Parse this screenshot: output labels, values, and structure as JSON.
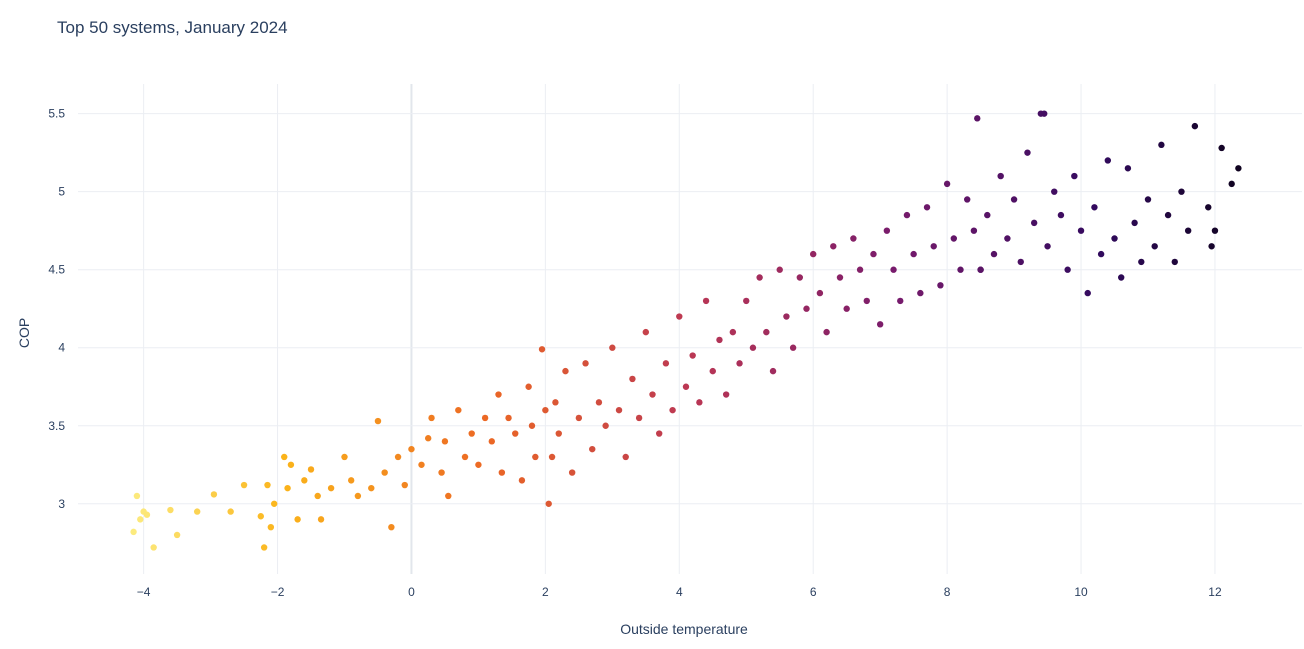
{
  "chart_data": {
    "type": "scatter",
    "title": "Top 50 systems, January 2024",
    "xlabel": "Outside temperature",
    "ylabel": "COP",
    "xlim": [
      -4.98,
      13.3
    ],
    "ylim": [
      2.55,
      5.69
    ],
    "xticks": [
      -4,
      -2,
      0,
      2,
      4,
      6,
      8,
      10,
      12
    ],
    "yticks": [
      3,
      3.5,
      4,
      4.5,
      5,
      5.5
    ],
    "xtick_labels": [
      "−4",
      "−2",
      "0",
      "2",
      "4",
      "6",
      "8",
      "10",
      "12"
    ],
    "ytick_labels": [
      "3",
      "3.5",
      "4",
      "4.5",
      "5",
      "5.5"
    ],
    "grid": true,
    "colorscale": [
      "#000004",
      "#320a5e",
      "#781b6c",
      "#bb3754",
      "#ec6824",
      "#fbb41a",
      "#fcffa4"
    ],
    "color_note_from_image": "point colour shifts from yellow (coldest) to black (warmest)",
    "series": [
      {
        "points": [
          [
            -4.15,
            2.82
          ],
          [
            -4.1,
            3.05
          ],
          [
            -4.05,
            2.9
          ],
          [
            -4.0,
            2.95
          ],
          [
            -3.95,
            2.93
          ],
          [
            -3.85,
            2.72
          ],
          [
            -3.6,
            2.96
          ],
          [
            -3.5,
            2.8
          ],
          [
            -3.2,
            2.95
          ],
          [
            -2.95,
            3.06
          ],
          [
            -2.7,
            2.95
          ],
          [
            -2.5,
            3.12
          ],
          [
            -2.25,
            2.92
          ],
          [
            -2.2,
            2.72
          ],
          [
            -2.15,
            3.12
          ],
          [
            -2.1,
            2.85
          ],
          [
            -2.05,
            3.0
          ],
          [
            -1.9,
            3.3
          ],
          [
            -1.85,
            3.1
          ],
          [
            -1.8,
            3.25
          ],
          [
            -1.7,
            2.9
          ],
          [
            -1.6,
            3.15
          ],
          [
            -1.5,
            3.22
          ],
          [
            -1.4,
            3.05
          ],
          [
            -1.35,
            2.9
          ],
          [
            -1.2,
            3.1
          ],
          [
            -1.0,
            3.3
          ],
          [
            -0.9,
            3.15
          ],
          [
            -0.8,
            3.05
          ],
          [
            -0.6,
            3.1
          ],
          [
            -0.5,
            3.53
          ],
          [
            -0.4,
            3.2
          ],
          [
            -0.3,
            2.85
          ],
          [
            -0.2,
            3.3
          ],
          [
            -0.1,
            3.12
          ],
          [
            0.0,
            3.35
          ],
          [
            0.15,
            3.25
          ],
          [
            0.25,
            3.42
          ],
          [
            0.3,
            3.55
          ],
          [
            0.45,
            3.2
          ],
          [
            0.5,
            3.4
          ],
          [
            0.55,
            3.05
          ],
          [
            0.7,
            3.6
          ],
          [
            0.8,
            3.3
          ],
          [
            0.9,
            3.45
          ],
          [
            1.0,
            3.25
          ],
          [
            1.1,
            3.55
          ],
          [
            1.2,
            3.4
          ],
          [
            1.3,
            3.7
          ],
          [
            1.35,
            3.2
          ],
          [
            1.45,
            3.55
          ],
          [
            1.55,
            3.45
          ],
          [
            1.65,
            3.15
          ],
          [
            1.75,
            3.75
          ],
          [
            1.8,
            3.5
          ],
          [
            1.85,
            3.3
          ],
          [
            1.95,
            3.99
          ],
          [
            2.0,
            3.6
          ],
          [
            2.05,
            3.0
          ],
          [
            2.1,
            3.3
          ],
          [
            2.15,
            3.65
          ],
          [
            2.2,
            3.45
          ],
          [
            2.3,
            3.85
          ],
          [
            2.4,
            3.2
          ],
          [
            2.5,
            3.55
          ],
          [
            2.6,
            3.9
          ],
          [
            2.7,
            3.35
          ],
          [
            2.8,
            3.65
          ],
          [
            2.9,
            3.5
          ],
          [
            3.0,
            4.0
          ],
          [
            3.1,
            3.6
          ],
          [
            3.2,
            3.3
          ],
          [
            3.3,
            3.8
          ],
          [
            3.4,
            3.55
          ],
          [
            3.5,
            4.1
          ],
          [
            3.6,
            3.7
          ],
          [
            3.7,
            3.45
          ],
          [
            3.8,
            3.9
          ],
          [
            3.9,
            3.6
          ],
          [
            4.0,
            4.2
          ],
          [
            4.1,
            3.75
          ],
          [
            4.2,
            3.95
          ],
          [
            4.3,
            3.65
          ],
          [
            4.4,
            4.3
          ],
          [
            4.5,
            3.85
          ],
          [
            4.6,
            4.05
          ],
          [
            4.7,
            3.7
          ],
          [
            4.8,
            4.1
          ],
          [
            4.9,
            3.9
          ],
          [
            5.0,
            4.3
          ],
          [
            5.1,
            4.0
          ],
          [
            5.2,
            4.45
          ],
          [
            5.3,
            4.1
          ],
          [
            5.4,
            3.85
          ],
          [
            5.5,
            4.5
          ],
          [
            5.6,
            4.2
          ],
          [
            5.7,
            4.0
          ],
          [
            5.8,
            4.45
          ],
          [
            5.9,
            4.25
          ],
          [
            6.0,
            4.6
          ],
          [
            6.1,
            4.35
          ],
          [
            6.2,
            4.1
          ],
          [
            6.3,
            4.65
          ],
          [
            6.4,
            4.45
          ],
          [
            6.5,
            4.25
          ],
          [
            6.6,
            4.7
          ],
          [
            6.7,
            4.5
          ],
          [
            6.8,
            4.3
          ],
          [
            6.9,
            4.6
          ],
          [
            7.0,
            4.15
          ],
          [
            7.1,
            4.75
          ],
          [
            7.2,
            4.5
          ],
          [
            7.3,
            4.3
          ],
          [
            7.4,
            4.85
          ],
          [
            7.5,
            4.6
          ],
          [
            7.6,
            4.35
          ],
          [
            7.7,
            4.9
          ],
          [
            7.8,
            4.65
          ],
          [
            7.9,
            4.4
          ],
          [
            8.0,
            5.05
          ],
          [
            8.1,
            4.7
          ],
          [
            8.2,
            4.5
          ],
          [
            8.3,
            4.95
          ],
          [
            8.4,
            4.75
          ],
          [
            8.45,
            5.47
          ],
          [
            8.5,
            4.5
          ],
          [
            8.6,
            4.85
          ],
          [
            8.7,
            4.6
          ],
          [
            8.8,
            5.1
          ],
          [
            8.9,
            4.7
          ],
          [
            9.0,
            4.95
          ],
          [
            9.1,
            4.55
          ],
          [
            9.2,
            5.25
          ],
          [
            9.3,
            4.8
          ],
          [
            9.4,
            5.5
          ],
          [
            9.5,
            4.65
          ],
          [
            9.6,
            5.0
          ],
          [
            9.7,
            4.85
          ],
          [
            9.8,
            4.5
          ],
          [
            9.9,
            5.1
          ],
          [
            10.0,
            4.75
          ],
          [
            10.1,
            4.35
          ],
          [
            10.2,
            4.9
          ],
          [
            10.3,
            4.6
          ],
          [
            10.4,
            5.2
          ],
          [
            10.5,
            4.7
          ],
          [
            10.6,
            4.45
          ],
          [
            10.7,
            5.15
          ],
          [
            10.8,
            4.8
          ],
          [
            10.9,
            4.55
          ],
          [
            11.0,
            4.95
          ],
          [
            11.1,
            4.65
          ],
          [
            11.2,
            5.3
          ],
          [
            11.3,
            4.85
          ],
          [
            11.4,
            4.55
          ],
          [
            11.5,
            5.0
          ],
          [
            11.6,
            4.75
          ],
          [
            11.7,
            5.42
          ],
          [
            11.9,
            4.9
          ],
          [
            12.0,
            4.75
          ],
          [
            12.1,
            5.28
          ],
          [
            12.25,
            5.05
          ],
          [
            12.35,
            5.15
          ],
          [
            9.45,
            5.5
          ],
          [
            11.95,
            4.65
          ],
          [
            8.5,
            4.5
          ]
        ]
      }
    ]
  }
}
